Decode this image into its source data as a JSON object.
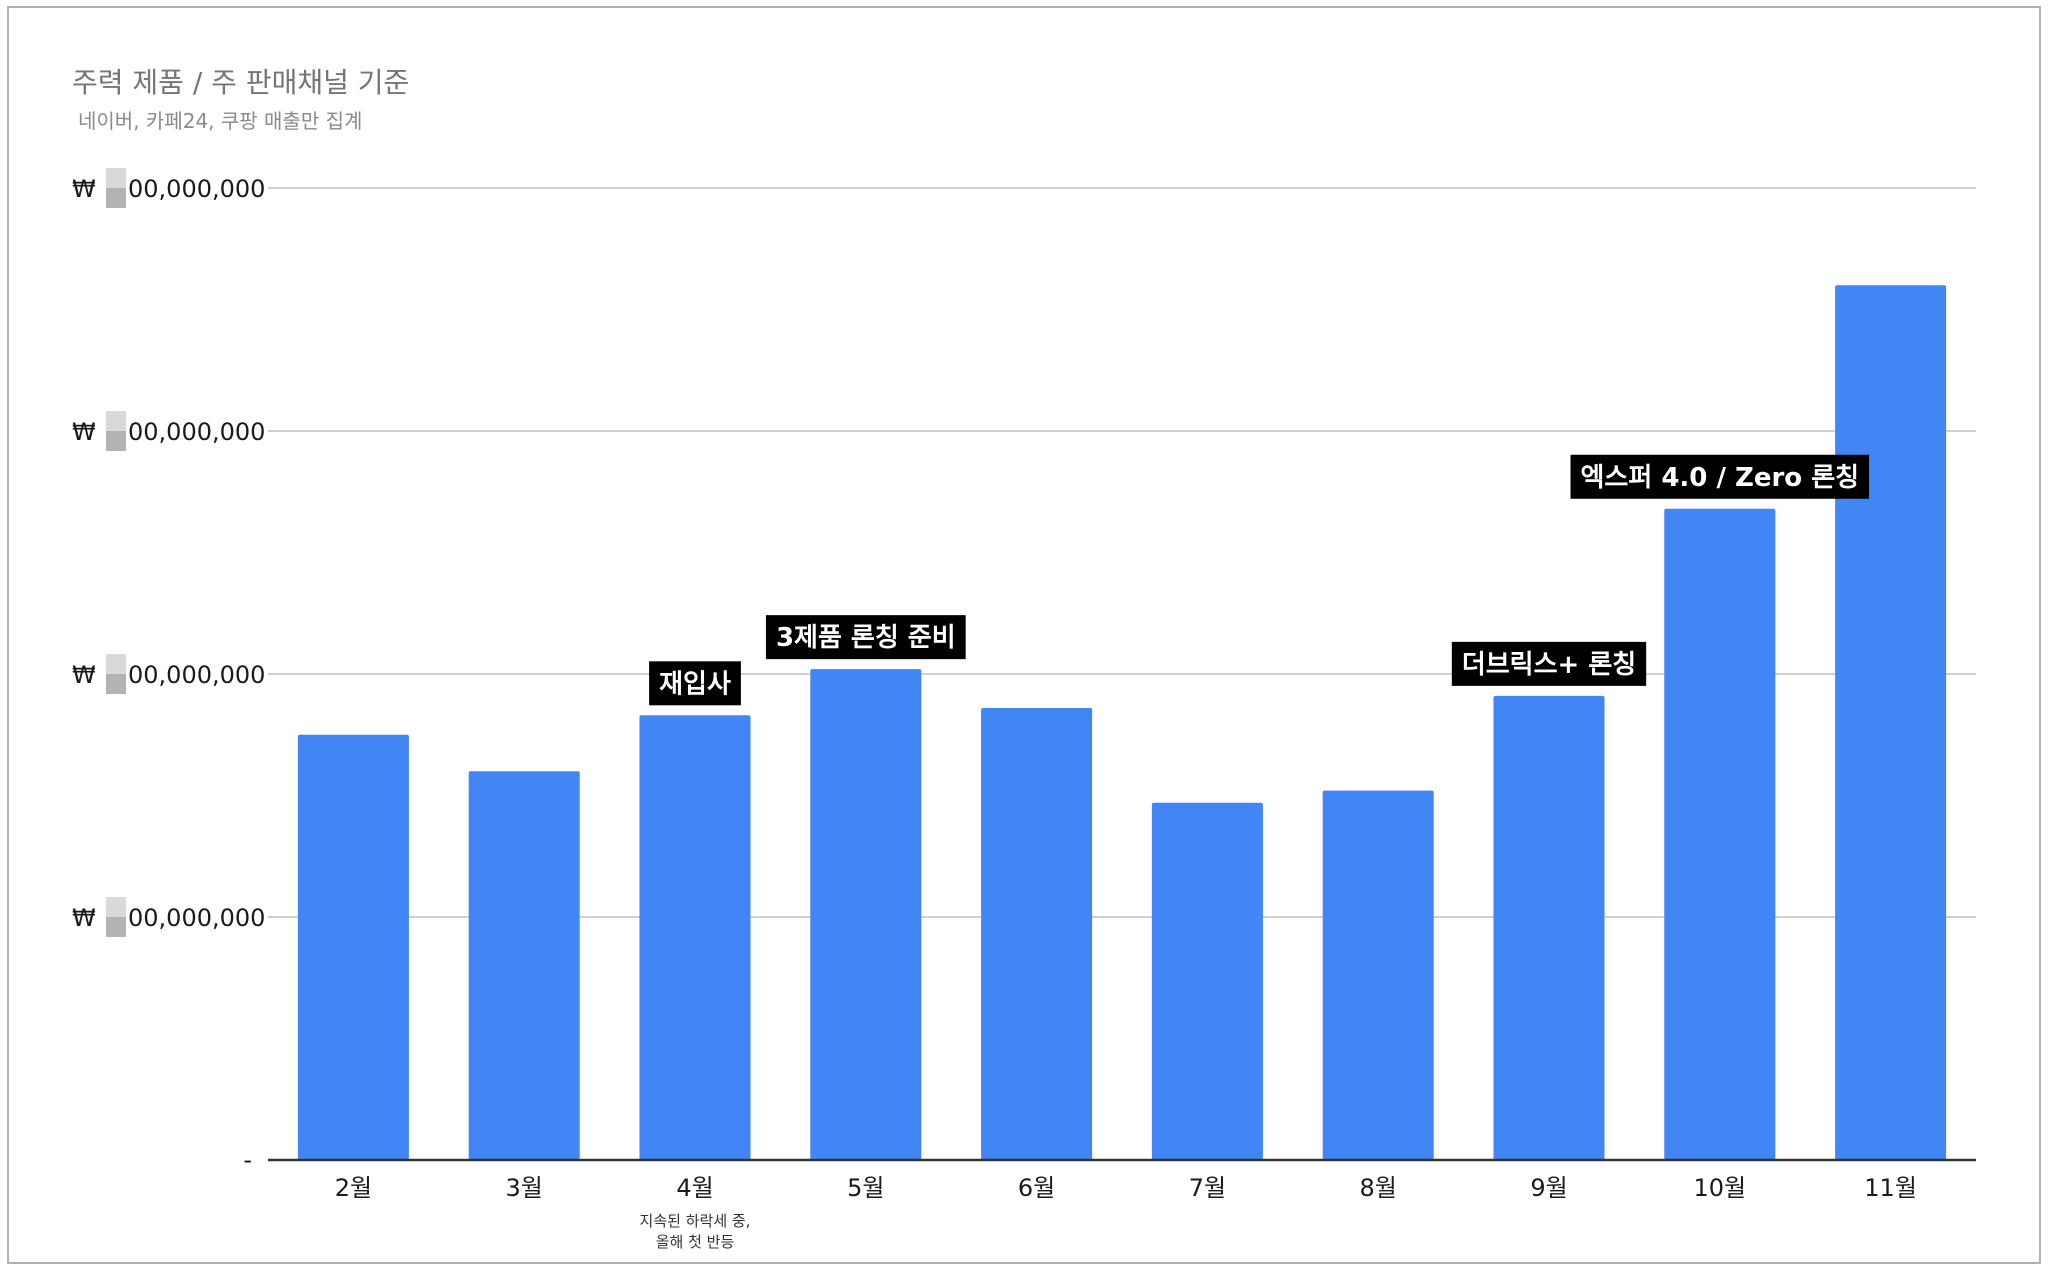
{
  "chart_data": {
    "type": "bar",
    "title": "주력 제품 / 주 판매채널 기준",
    "subtitle": "네이버, 카페24, 쿠팡 매출만 집계",
    "categories": [
      "2월",
      "3월",
      "4월",
      "5월",
      "6월",
      "7월",
      "8월",
      "9월",
      "10월",
      "11월"
    ],
    "values": [
      1.75,
      1.6,
      1.83,
      2.02,
      1.86,
      1.47,
      1.52,
      1.91,
      2.68,
      3.6
    ],
    "ylim": [
      0,
      4
    ],
    "y_ticks": [
      {
        "value": 0,
        "label": "-"
      },
      {
        "value": 1,
        "label": "₩ ▒00,000,000"
      },
      {
        "value": 2,
        "label": "₩ ▒00,000,000"
      },
      {
        "value": 3,
        "label": "₩ ▒00,000,000"
      },
      {
        "value": 4,
        "label": "₩ ▒00,000,000"
      }
    ],
    "grid": true,
    "bar_color": "#4285f4",
    "annotations": [
      {
        "category_index": 2,
        "text": "재입사"
      },
      {
        "category_index": 3,
        "text": "3제품 론칭 준비"
      },
      {
        "category_index": 7,
        "text": "더브릭스+ 론칭"
      },
      {
        "category_index": 8,
        "text": "엑스퍼 4.0 / Zero 론칭"
      }
    ],
    "category_notes": [
      {
        "category_index": 2,
        "lines": [
          "지속된 하락세 중,",
          "올해 첫 반등"
        ]
      }
    ]
  }
}
